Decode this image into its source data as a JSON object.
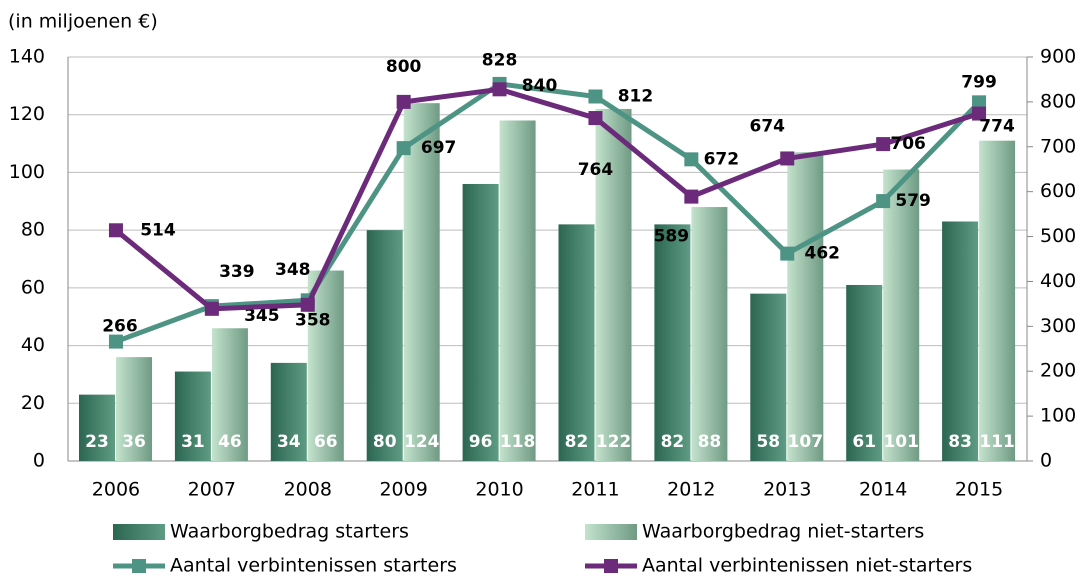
{
  "chart_data": {
    "type": "bar",
    "axis_label": "(in miljoenen €)",
    "categories": [
      "2006",
      "2007",
      "2008",
      "2009",
      "2010",
      "2011",
      "2012",
      "2013",
      "2014",
      "2015"
    ],
    "ylim": [
      0,
      140
    ],
    "yticks": [
      0,
      20,
      40,
      60,
      80,
      100,
      120,
      140
    ],
    "y2lim": [
      0,
      900
    ],
    "y2ticks": [
      0,
      100,
      200,
      300,
      400,
      500,
      600,
      700,
      800,
      900
    ],
    "grid": true,
    "series": [
      {
        "name": "Waarborgbedrag starters",
        "type": "bar",
        "color": "#3f7f68",
        "values": [
          23,
          31,
          34,
          80,
          96,
          82,
          82,
          58,
          61,
          83
        ]
      },
      {
        "name": "Waarborgbedrag niet-starters",
        "type": "bar",
        "color": "#a6cdb3",
        "values": [
          36,
          46,
          66,
          124,
          118,
          122,
          88,
          107,
          101,
          111
        ]
      },
      {
        "name": "Aantal verbintenissen starters",
        "type": "line",
        "axis": "y2",
        "color": "#4e9484",
        "values": [
          266,
          345,
          358,
          697,
          840,
          812,
          672,
          462,
          579,
          799
        ]
      },
      {
        "name": "Aantal verbintenissen niet-starters",
        "type": "line",
        "axis": "y2",
        "color": "#6b2a7a",
        "values": [
          514,
          339,
          348,
          800,
          828,
          764,
          589,
          674,
          706,
          774
        ]
      }
    ]
  }
}
